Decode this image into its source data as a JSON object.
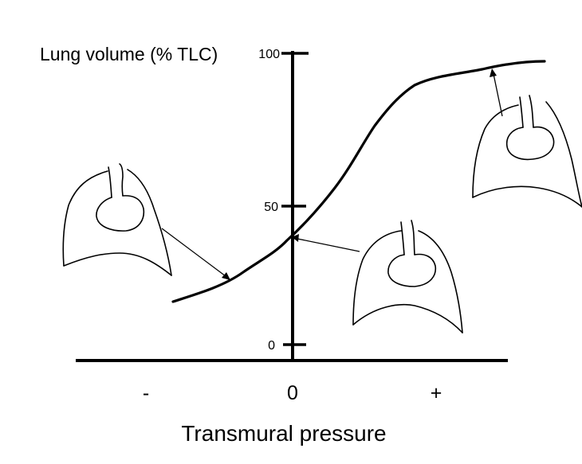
{
  "y_axis": {
    "title": "Lung volume (% TLC)",
    "ticks": [
      "100",
      "50",
      "0"
    ]
  },
  "x_axis": {
    "title": "Transmural pressure",
    "ticks": [
      "-",
      "0",
      "+"
    ]
  },
  "colors": {
    "ink": "#000000",
    "background": "#ffffff"
  }
}
